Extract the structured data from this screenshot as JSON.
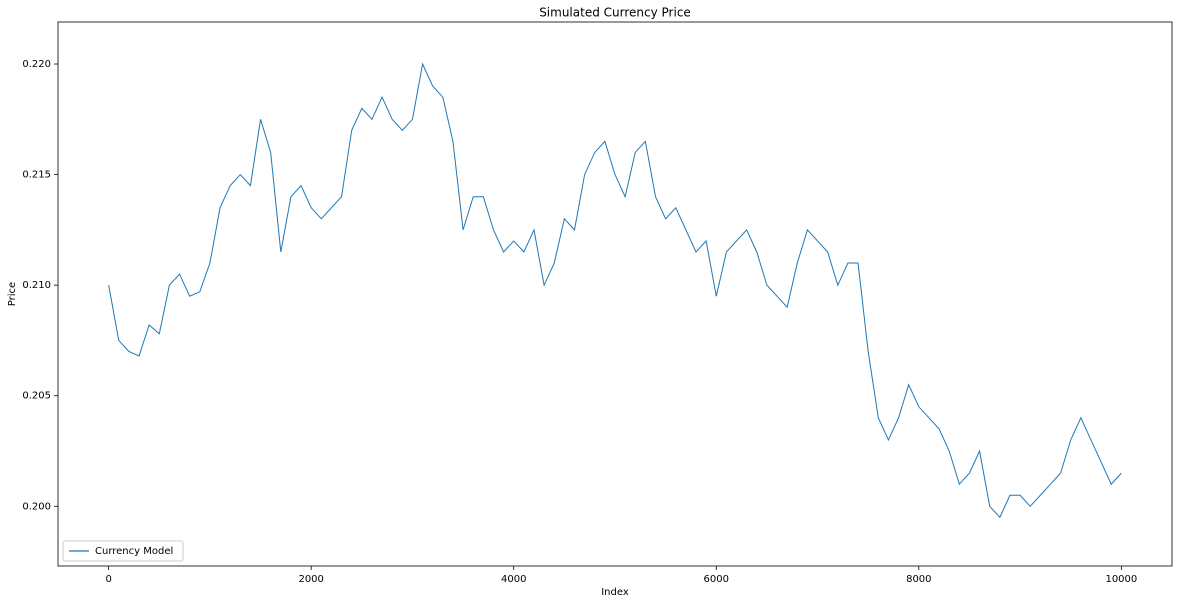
{
  "chart_data": {
    "type": "line",
    "title": "Simulated Currency Price",
    "x_label": "Index",
    "y_label": "Price",
    "x": [
      0,
      100,
      200,
      300,
      400,
      500,
      600,
      700,
      800,
      900,
      1000,
      1100,
      1200,
      1300,
      1400,
      1500,
      1600,
      1700,
      1800,
      1900,
      2000,
      2100,
      2200,
      2300,
      2400,
      2500,
      2600,
      2700,
      2800,
      2900,
      3000,
      3100,
      3200,
      3300,
      3400,
      3500,
      3600,
      3700,
      3800,
      3900,
      4000,
      4100,
      4200,
      4300,
      4400,
      4500,
      4600,
      4700,
      4800,
      4900,
      5000,
      5100,
      5200,
      5300,
      5400,
      5500,
      5600,
      5700,
      5800,
      5900,
      6000,
      6100,
      6200,
      6300,
      6400,
      6500,
      6600,
      6700,
      6800,
      6900,
      7000,
      7100,
      7200,
      7300,
      7400,
      7500,
      7600,
      7700,
      7800,
      7900,
      8000,
      8100,
      8200,
      8300,
      8400,
      8500,
      8600,
      8700,
      8800,
      8900,
      9000,
      9100,
      9200,
      9300,
      9400,
      9500,
      9600,
      9700,
      9800,
      9900,
      10000
    ],
    "series": [
      {
        "name": "Currency Model",
        "color": "#1f77b4",
        "values": [
          0.21,
          0.2075,
          0.207,
          0.2068,
          0.2082,
          0.2078,
          0.21,
          0.2105,
          0.2095,
          0.2097,
          0.211,
          0.2135,
          0.2145,
          0.215,
          0.2145,
          0.2175,
          0.216,
          0.2115,
          0.214,
          0.2145,
          0.2135,
          0.213,
          0.2135,
          0.214,
          0.217,
          0.218,
          0.2175,
          0.2185,
          0.2175,
          0.217,
          0.2175,
          0.22,
          0.219,
          0.2185,
          0.2165,
          0.2125,
          0.214,
          0.214,
          0.2125,
          0.2115,
          0.212,
          0.2115,
          0.2125,
          0.21,
          0.211,
          0.213,
          0.2125,
          0.215,
          0.216,
          0.2165,
          0.215,
          0.214,
          0.216,
          0.2165,
          0.214,
          0.213,
          0.2135,
          0.2125,
          0.2115,
          0.212,
          0.2095,
          0.2115,
          0.212,
          0.2125,
          0.2115,
          0.21,
          0.2095,
          0.209,
          0.211,
          0.2125,
          0.212,
          0.2115,
          0.21,
          0.211,
          0.211,
          0.207,
          0.204,
          0.203,
          0.204,
          0.2055,
          0.2045,
          0.204,
          0.2035,
          0.2025,
          0.201,
          0.2015,
          0.2025,
          0.2,
          0.1995,
          0.2005,
          0.2005,
          0.2,
          0.2005,
          0.201,
          0.2015,
          0.203,
          0.204,
          0.203,
          0.202,
          0.201,
          0.2015
        ]
      }
    ],
    "xlim": [
      -500,
      10500
    ],
    "xticks": [
      0,
      2000,
      4000,
      6000,
      8000,
      10000
    ],
    "ylim": [
      0.1973,
      0.2219
    ],
    "yticks": [
      {
        "value": 0.2,
        "label": "0.200"
      },
      0.205,
      {
        "value": 0.21,
        "label": "0.210"
      },
      0.215,
      {
        "value": 0.22,
        "label": "0.220"
      }
    ],
    "grid": false,
    "legend": "lower left"
  }
}
